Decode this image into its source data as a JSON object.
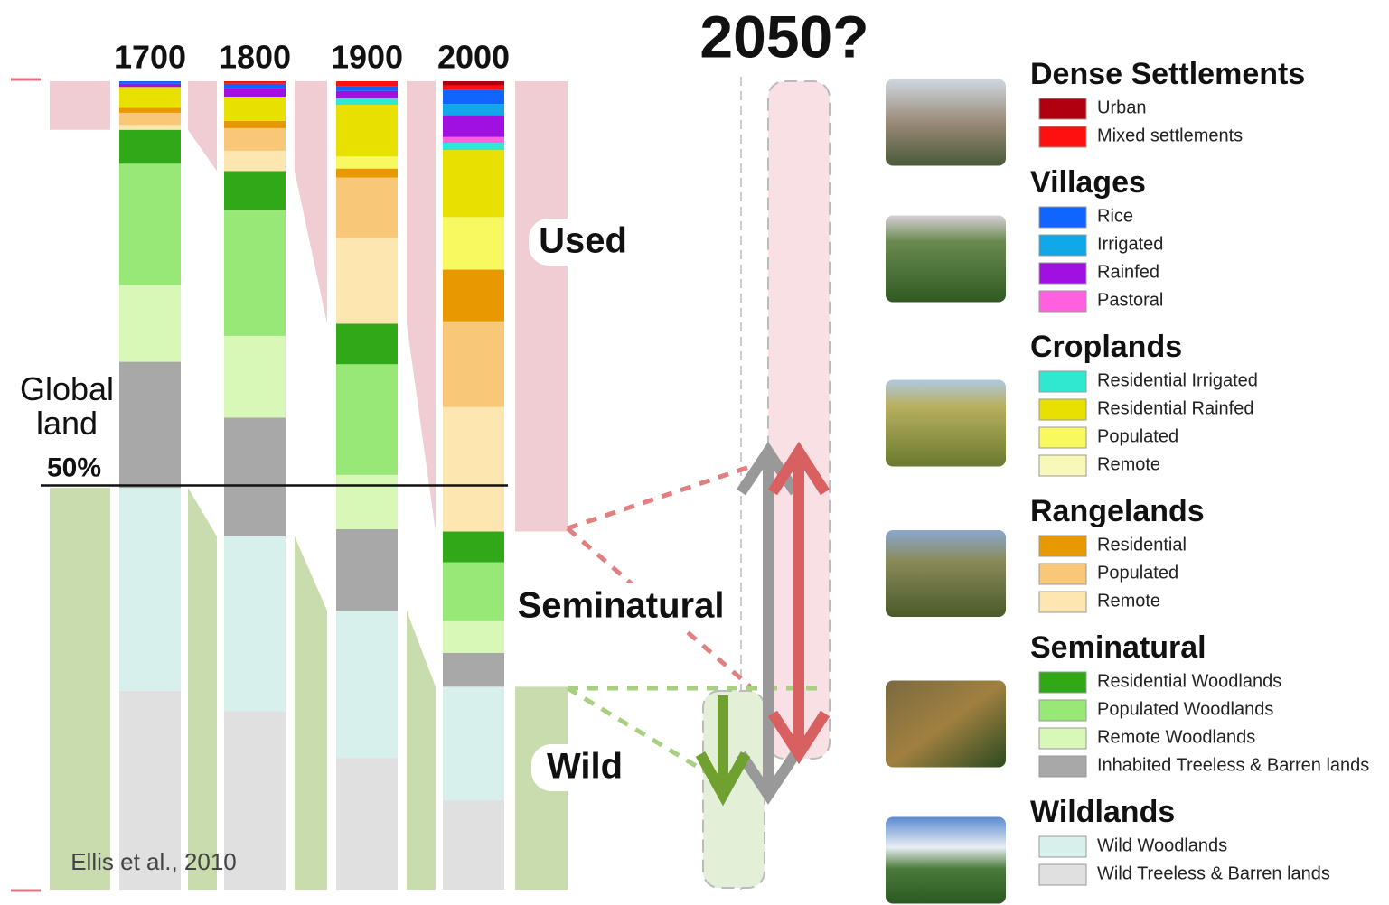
{
  "chart_data": {
    "type": "bar",
    "stacked": true,
    "categories": [
      "1700",
      "1800",
      "1900",
      "2000"
    ],
    "ylim": [
      0,
      100
    ],
    "reference_line": {
      "value": 50,
      "label": "50%"
    },
    "annotations": {
      "global_land": "Global land",
      "used": "Used",
      "seminatural": "Seminatural",
      "wild": "Wild",
      "future": "2050?"
    },
    "source": "Ellis et al., 2010",
    "groups": [
      {
        "name": "Dense Settlements",
        "series": [
          {
            "name": "Urban",
            "color": "#b00010",
            "values": [
              0,
              0,
              0,
              0.5
            ]
          },
          {
            "name": "Mixed settlements",
            "color": "#ff1010",
            "values": [
              0,
              0.3,
              0.6,
              0.6
            ]
          }
        ]
      },
      {
        "name": "Villages",
        "series": [
          {
            "name": "Rice",
            "color": "#1064ff",
            "values": [
              0.3,
              0.5,
              0.6,
              1.7
            ]
          },
          {
            "name": "Irrigated",
            "color": "#10a8e8",
            "values": [
              0,
              0,
              0,
              1.4
            ]
          },
          {
            "name": "Rainfed",
            "color": "#a010e0",
            "values": [
              0.4,
              1.1,
              0.9,
              2.7
            ]
          },
          {
            "name": "Pastoral",
            "color": "#ff60e0",
            "values": [
              0,
              0,
              0,
              0.7
            ]
          }
        ]
      },
      {
        "name": "Croplands",
        "series": [
          {
            "name": "Residential Irrigated",
            "color": "#30e8d0",
            "values": [
              0,
              0,
              0.8,
              0.9
            ]
          },
          {
            "name": "Residential Rainfed",
            "color": "#e8e000",
            "values": [
              2.6,
              3.0,
              6.4,
              8.3
            ]
          },
          {
            "name": "Populated",
            "color": "#f8f860",
            "values": [
              0,
              0,
              1.5,
              6.5
            ]
          },
          {
            "name": "Remote",
            "color": "#f8f8b8",
            "values": [
              0,
              0,
              0,
              0
            ]
          }
        ]
      },
      {
        "name": "Rangelands",
        "series": [
          {
            "name": "Residential",
            "color": "#e89800",
            "values": [
              0.6,
              0.9,
              1.1,
              6.4
            ]
          },
          {
            "name": "Populated",
            "color": "#f8c878",
            "values": [
              1.5,
              2.8,
              7.5,
              10.6
            ]
          },
          {
            "name": "Remote",
            "color": "#fde6b0",
            "values": [
              0.6,
              2.5,
              10.6,
              15.4
            ]
          }
        ]
      },
      {
        "name": "Seminatural",
        "series": [
          {
            "name": "Residential Woodlands",
            "color": "#30a818",
            "values": [
              4.2,
              4.8,
              5.0,
              3.8
            ]
          },
          {
            "name": "Populated Woodlands",
            "color": "#98e878",
            "values": [
              15,
              15.6,
              13.7,
              7.3
            ]
          },
          {
            "name": "Remote Woodlands",
            "color": "#d8f8b8",
            "values": [
              9.5,
              10.1,
              6.7,
              3.9
            ]
          },
          {
            "name": "Inhabited Treeless & Barren lands",
            "color": "#a8a8a8",
            "values": [
              15.6,
              14.7,
              10.1,
              4.2
            ]
          }
        ]
      },
      {
        "name": "Wildlands",
        "series": [
          {
            "name": "Wild Woodlands",
            "color": "#d8f0ec",
            "values": [
              25.1,
              21.6,
              18.2,
              14.0
            ]
          },
          {
            "name": "Wild Treeless & Barren lands",
            "color": "#e0e0e0",
            "values": [
              24.6,
              22.1,
              16.3,
              11.1
            ]
          }
        ]
      }
    ]
  }
}
